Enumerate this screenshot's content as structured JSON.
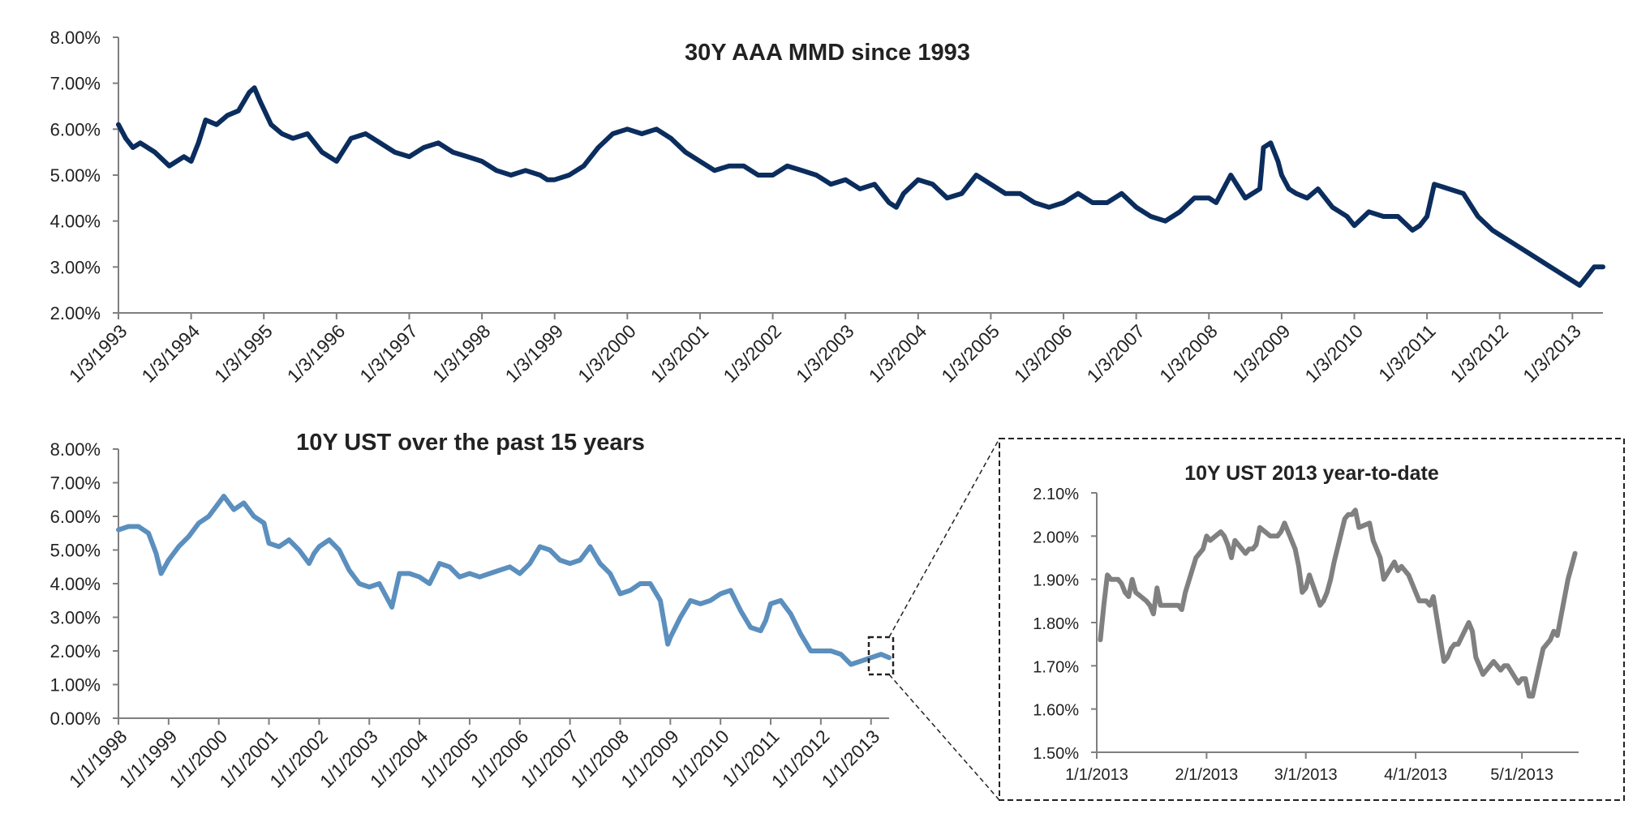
{
  "colors": {
    "mmd_line": "#0b2d5e",
    "ust_line": "#5b8fbe",
    "ytd_line": "#808080",
    "axis": "#7f7f7f",
    "inset_border": "#222222"
  },
  "chart_data": [
    {
      "id": "mmd",
      "type": "line",
      "title": "30Y AAA MMD since 1993",
      "xlabel": "",
      "ylabel": "",
      "ylim": [
        0.02,
        0.08
      ],
      "y_ticks": [
        "2.00%",
        "3.00%",
        "4.00%",
        "5.00%",
        "6.00%",
        "7.00%",
        "8.00%"
      ],
      "x_ticks": [
        "1/3/1993",
        "1/3/1994",
        "1/3/1995",
        "1/3/1996",
        "1/3/1997",
        "1/3/1998",
        "1/3/1999",
        "1/3/2000",
        "1/3/2001",
        "1/3/2002",
        "1/3/2003",
        "1/3/2004",
        "1/3/2005",
        "1/3/2006",
        "1/3/2007",
        "1/3/2008",
        "1/3/2009",
        "1/3/2010",
        "1/3/2011",
        "1/3/2012",
        "1/3/2013"
      ],
      "xlim": [
        1993.0,
        2013.42
      ],
      "series": [
        {
          "name": "30Y AAA MMD",
          "x": [
            1993.0,
            1993.1,
            1993.2,
            1993.3,
            1993.5,
            1993.7,
            1993.9,
            1994.0,
            1994.1,
            1994.2,
            1994.35,
            1994.5,
            1994.65,
            1994.8,
            1994.87,
            1994.95,
            1995.1,
            1995.25,
            1995.4,
            1995.6,
            1995.8,
            1996.0,
            1996.2,
            1996.4,
            1996.6,
            1996.8,
            1997.0,
            1997.2,
            1997.4,
            1997.6,
            1997.8,
            1998.0,
            1998.2,
            1998.4,
            1998.6,
            1998.8,
            1998.9,
            1999.0,
            1999.2,
            1999.4,
            1999.6,
            1999.8,
            2000.0,
            2000.2,
            2000.4,
            2000.6,
            2000.8,
            2001.0,
            2001.2,
            2001.4,
            2001.6,
            2001.8,
            2002.0,
            2002.2,
            2002.4,
            2002.6,
            2002.8,
            2003.0,
            2003.2,
            2003.4,
            2003.6,
            2003.7,
            2003.8,
            2004.0,
            2004.2,
            2004.4,
            2004.6,
            2004.8,
            2005.0,
            2005.2,
            2005.4,
            2005.6,
            2005.8,
            2006.0,
            2006.2,
            2006.4,
            2006.6,
            2006.8,
            2007.0,
            2007.2,
            2007.4,
            2007.6,
            2007.8,
            2008.0,
            2008.1,
            2008.3,
            2008.5,
            2008.7,
            2008.75,
            2008.85,
            2008.95,
            2009.0,
            2009.1,
            2009.2,
            2009.35,
            2009.5,
            2009.7,
            2009.9,
            2010.0,
            2010.2,
            2010.4,
            2010.6,
            2010.8,
            2010.9,
            2011.0,
            2011.1,
            2011.3,
            2011.5,
            2011.7,
            2011.9,
            2012.0,
            2012.2,
            2012.4,
            2012.6,
            2012.8,
            2012.9,
            2013.0,
            2013.1,
            2013.2,
            2013.3,
            2013.42
          ],
          "values": [
            0.061,
            0.058,
            0.056,
            0.057,
            0.055,
            0.052,
            0.054,
            0.053,
            0.057,
            0.062,
            0.061,
            0.063,
            0.064,
            0.068,
            0.069,
            0.066,
            0.061,
            0.059,
            0.058,
            0.059,
            0.055,
            0.053,
            0.058,
            0.059,
            0.057,
            0.055,
            0.054,
            0.056,
            0.057,
            0.055,
            0.054,
            0.053,
            0.051,
            0.05,
            0.051,
            0.05,
            0.049,
            0.049,
            0.05,
            0.052,
            0.056,
            0.059,
            0.06,
            0.059,
            0.06,
            0.058,
            0.055,
            0.053,
            0.051,
            0.052,
            0.052,
            0.05,
            0.05,
            0.052,
            0.051,
            0.05,
            0.048,
            0.049,
            0.047,
            0.048,
            0.044,
            0.043,
            0.046,
            0.049,
            0.048,
            0.045,
            0.046,
            0.05,
            0.048,
            0.046,
            0.046,
            0.044,
            0.043,
            0.044,
            0.046,
            0.044,
            0.044,
            0.046,
            0.043,
            0.041,
            0.04,
            0.042,
            0.045,
            0.045,
            0.044,
            0.05,
            0.045,
            0.047,
            0.056,
            0.057,
            0.053,
            0.05,
            0.047,
            0.046,
            0.045,
            0.047,
            0.043,
            0.041,
            0.039,
            0.042,
            0.041,
            0.041,
            0.038,
            0.039,
            0.041,
            0.048,
            0.047,
            0.046,
            0.041,
            0.038,
            0.037,
            0.035,
            0.033,
            0.031,
            0.029,
            0.028,
            0.027,
            0.026,
            0.028,
            0.03,
            0.03
          ]
        }
      ]
    },
    {
      "id": "ust15",
      "type": "line",
      "title": "10Y UST over the past 15 years",
      "xlabel": "",
      "ylabel": "",
      "ylim": [
        0.0,
        0.08
      ],
      "y_ticks": [
        "0.00%",
        "1.00%",
        "2.00%",
        "3.00%",
        "4.00%",
        "5.00%",
        "6.00%",
        "7.00%",
        "8.00%"
      ],
      "x_ticks": [
        "1/1/1998",
        "1/1/1999",
        "1/1/2000",
        "1/1/2001",
        "1/1/2002",
        "1/1/2003",
        "1/1/2004",
        "1/1/2005",
        "1/1/2006",
        "1/1/2007",
        "1/1/2008",
        "1/1/2009",
        "1/1/2010",
        "1/1/2011",
        "1/1/2012",
        "1/1/2013"
      ],
      "xlim": [
        1998.0,
        2013.36
      ],
      "series": [
        {
          "name": "10Y UST",
          "x": [
            1998.0,
            1998.2,
            1998.4,
            1998.6,
            1998.75,
            1998.85,
            1999.0,
            1999.2,
            1999.4,
            1999.6,
            1999.8,
            2000.0,
            2000.1,
            2000.3,
            2000.5,
            2000.7,
            2000.9,
            2001.0,
            2001.2,
            2001.4,
            2001.6,
            2001.8,
            2001.9,
            2002.0,
            2002.2,
            2002.4,
            2002.6,
            2002.8,
            2003.0,
            2003.2,
            2003.45,
            2003.6,
            2003.8,
            2004.0,
            2004.2,
            2004.4,
            2004.6,
            2004.8,
            2005.0,
            2005.2,
            2005.4,
            2005.6,
            2005.8,
            2006.0,
            2006.2,
            2006.4,
            2006.6,
            2006.8,
            2007.0,
            2007.2,
            2007.4,
            2007.6,
            2007.8,
            2008.0,
            2008.2,
            2008.4,
            2008.6,
            2008.8,
            2008.95,
            2009.0,
            2009.2,
            2009.4,
            2009.6,
            2009.8,
            2010.0,
            2010.2,
            2010.4,
            2010.6,
            2010.8,
            2010.9,
            2011.0,
            2011.2,
            2011.4,
            2011.6,
            2011.8,
            2012.0,
            2012.2,
            2012.4,
            2012.6,
            2012.8,
            2013.0,
            2013.2,
            2013.36
          ],
          "values": [
            0.056,
            0.057,
            0.057,
            0.055,
            0.049,
            0.043,
            0.047,
            0.051,
            0.054,
            0.058,
            0.06,
            0.064,
            0.066,
            0.062,
            0.064,
            0.06,
            0.058,
            0.052,
            0.051,
            0.053,
            0.05,
            0.046,
            0.049,
            0.051,
            0.053,
            0.05,
            0.044,
            0.04,
            0.039,
            0.04,
            0.033,
            0.043,
            0.043,
            0.042,
            0.04,
            0.046,
            0.045,
            0.042,
            0.043,
            0.042,
            0.043,
            0.044,
            0.045,
            0.043,
            0.046,
            0.051,
            0.05,
            0.047,
            0.046,
            0.047,
            0.051,
            0.046,
            0.043,
            0.037,
            0.038,
            0.04,
            0.04,
            0.035,
            0.022,
            0.024,
            0.03,
            0.035,
            0.034,
            0.035,
            0.037,
            0.038,
            0.032,
            0.027,
            0.026,
            0.029,
            0.034,
            0.035,
            0.031,
            0.025,
            0.02,
            0.02,
            0.02,
            0.019,
            0.016,
            0.017,
            0.018,
            0.019,
            0.018
          ]
        }
      ]
    },
    {
      "id": "ust_ytd",
      "type": "line",
      "title": "10Y UST 2013 year-to-date",
      "xlabel": "",
      "ylabel": "",
      "ylim": [
        0.015,
        0.021
      ],
      "y_ticks": [
        "1.50%",
        "1.60%",
        "1.70%",
        "1.80%",
        "1.90%",
        "2.00%",
        "2.10%"
      ],
      "x_ticks": [
        "1/1/2013",
        "2/1/2013",
        "3/1/2013",
        "4/1/2013",
        "5/1/2013"
      ],
      "x_tick_days": [
        0,
        31,
        59,
        90,
        120
      ],
      "xlim": [
        0,
        136
      ],
      "series": [
        {
          "name": "10Y UST 2013 YTD",
          "x": [
            1,
            2,
            3,
            4,
            5,
            6,
            7,
            8,
            9,
            10,
            11,
            14,
            15,
            16,
            17,
            18,
            21,
            22,
            23,
            24,
            25,
            28,
            29,
            30,
            31,
            32,
            35,
            36,
            37,
            38,
            39,
            42,
            43,
            44,
            45,
            46,
            49,
            50,
            51,
            52,
            53,
            56,
            57,
            58,
            59,
            60,
            63,
            64,
            65,
            66,
            67,
            70,
            71,
            72,
            73,
            74,
            77,
            78,
            79,
            80,
            81,
            84,
            85,
            86,
            87,
            88,
            91,
            92,
            93,
            94,
            95,
            98,
            99,
            100,
            101,
            102,
            105,
            106,
            107,
            108,
            109,
            112,
            113,
            114,
            115,
            116,
            119,
            120,
            121,
            122,
            123,
            126,
            127,
            128,
            129,
            130,
            133,
            134,
            135
          ],
          "values": [
            0.0176,
            0.0184,
            0.0191,
            0.019,
            0.019,
            0.019,
            0.0189,
            0.0187,
            0.0186,
            0.019,
            0.0187,
            0.0185,
            0.0184,
            0.0182,
            0.0188,
            0.0184,
            0.0184,
            0.0184,
            0.0184,
            0.0183,
            0.0187,
            0.0195,
            0.0196,
            0.0197,
            0.02,
            0.0199,
            0.0201,
            0.02,
            0.0198,
            0.0195,
            0.0199,
            0.0196,
            0.0197,
            0.0197,
            0.0198,
            0.0202,
            0.02,
            0.02,
            0.02,
            0.0201,
            0.0203,
            0.0197,
            0.0193,
            0.0187,
            0.0188,
            0.0191,
            0.0184,
            0.0185,
            0.0187,
            0.019,
            0.0194,
            0.0204,
            0.0205,
            0.0205,
            0.0206,
            0.0202,
            0.0203,
            0.0199,
            0.0197,
            0.0195,
            0.019,
            0.0194,
            0.0192,
            0.0193,
            0.0192,
            0.0191,
            0.0185,
            0.0185,
            0.0185,
            0.0184,
            0.0186,
            0.0171,
            0.0172,
            0.0174,
            0.0175,
            0.0175,
            0.018,
            0.0178,
            0.0172,
            0.017,
            0.0168,
            0.0171,
            0.017,
            0.0169,
            0.017,
            0.017,
            0.0166,
            0.0167,
            0.0167,
            0.0163,
            0.0163,
            0.0174,
            0.0175,
            0.0176,
            0.0178,
            0.0177,
            0.019,
            0.0193,
            0.0196
          ]
        }
      ]
    }
  ]
}
